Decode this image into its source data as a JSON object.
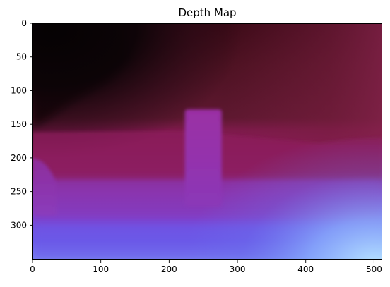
{
  "figure": {
    "title": "Depth Map"
  },
  "chart_data": {
    "type": "heatmap",
    "title": "Depth Map",
    "xlabel": "",
    "ylabel": "",
    "image_width": 512,
    "image_height": 352,
    "xlim": [
      0,
      512
    ],
    "ylim": [
      352,
      0
    ],
    "y_inverted": true,
    "x_ticks": [
      0,
      100,
      200,
      300,
      400,
      500
    ],
    "y_ticks": [
      0,
      50,
      100,
      150,
      200,
      250,
      300
    ],
    "grid": false,
    "colors": {
      "near_black_top_left": "#0a0406",
      "dark_maroon_background": "#5a1628",
      "upper_right_maroon": "#701c3a",
      "crimson_magenta_band": "#8c1d5c",
      "purple_mid": "#8a36b4",
      "blue_violet_low": "#6a5ae6",
      "light_blue_bottom_right": "#a8d4ff"
    }
  }
}
